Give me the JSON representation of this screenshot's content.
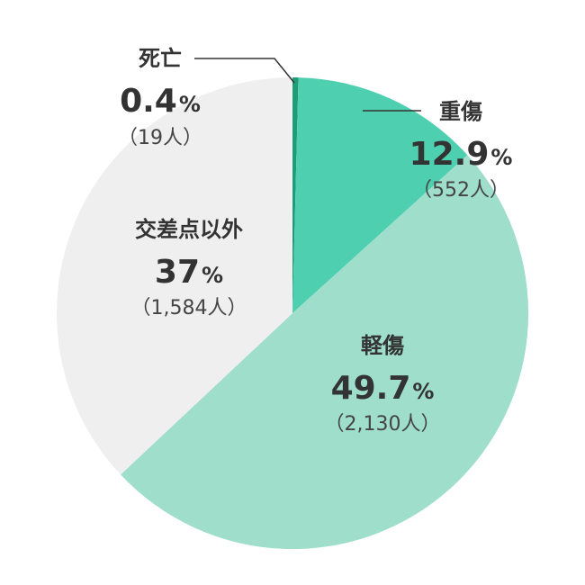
{
  "chart_data": {
    "type": "pie",
    "start_angle_deg": 0,
    "direction": "clockwise",
    "slices": [
      {
        "name": "死亡",
        "percent": "0.4",
        "value": 0.4,
        "count": "（19人）",
        "color": "#1e9c78"
      },
      {
        "name": "重傷",
        "percent": "12.9",
        "value": 12.9,
        "count": "（552人）",
        "color": "#4ecfb0"
      },
      {
        "name": "軽傷",
        "percent": "49.7",
        "value": 49.7,
        "count": "（2,130人）",
        "color": "#9fdecb"
      },
      {
        "name": "交差点以外",
        "percent": "37",
        "value": 37,
        "count": "（1,584人）",
        "color": "#efefef"
      }
    ],
    "unit": "%"
  }
}
